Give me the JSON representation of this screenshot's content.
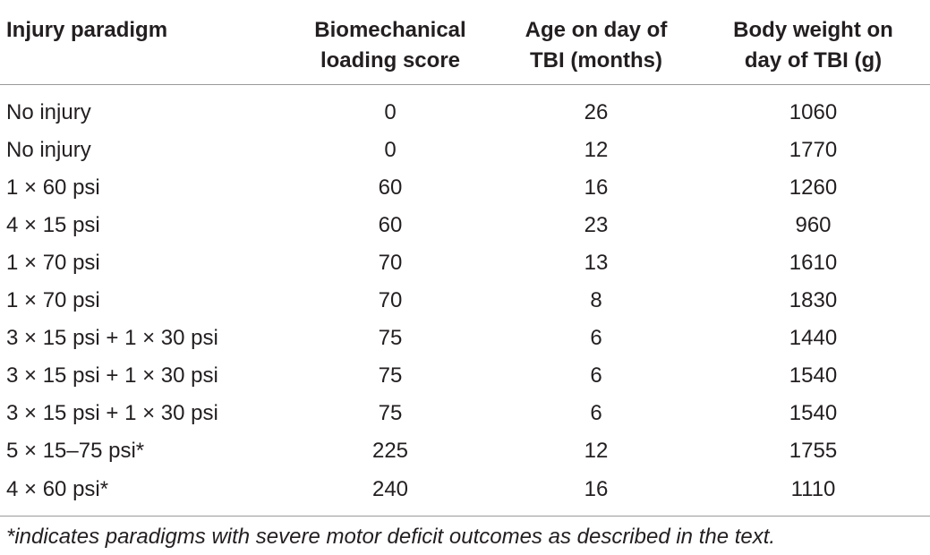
{
  "table": {
    "headers": {
      "col1": "Injury paradigm",
      "col2_line1": "Biomechanical",
      "col2_line2": "loading score",
      "col3_line1": "Age on day of",
      "col3_line2": "TBI (months)",
      "col4_line1": "Body weight on",
      "col4_line2": "day of TBI (g)"
    },
    "rows": [
      {
        "paradigm": "No injury",
        "score": "0",
        "age": "26",
        "weight": "1060"
      },
      {
        "paradigm": "No injury",
        "score": "0",
        "age": "12",
        "weight": "1770"
      },
      {
        "paradigm": "1 × 60 psi",
        "score": "60",
        "age": "16",
        "weight": "1260"
      },
      {
        "paradigm": "4 × 15 psi",
        "score": "60",
        "age": "23",
        "weight": "960"
      },
      {
        "paradigm": "1 × 70 psi",
        "score": "70",
        "age": "13",
        "weight": "1610"
      },
      {
        "paradigm": "1 × 70 psi",
        "score": "70",
        "age": "8",
        "weight": "1830"
      },
      {
        "paradigm": "3 × 15 psi + 1 × 30 psi",
        "score": "75",
        "age": "6",
        "weight": "1440"
      },
      {
        "paradigm": "3 × 15 psi + 1 × 30 psi",
        "score": "75",
        "age": "6",
        "weight": "1540"
      },
      {
        "paradigm": "3 × 15 psi + 1 × 30 psi",
        "score": "75",
        "age": "6",
        "weight": "1540"
      },
      {
        "paradigm": "5 × 15–75 psi*",
        "score": "225",
        "age": "12",
        "weight": "1755"
      },
      {
        "paradigm": "4 × 60 psi*",
        "score": "240",
        "age": "16",
        "weight": "1110"
      }
    ]
  },
  "footnote": "*indicates paradigms with severe motor deficit outcomes as described in the text."
}
